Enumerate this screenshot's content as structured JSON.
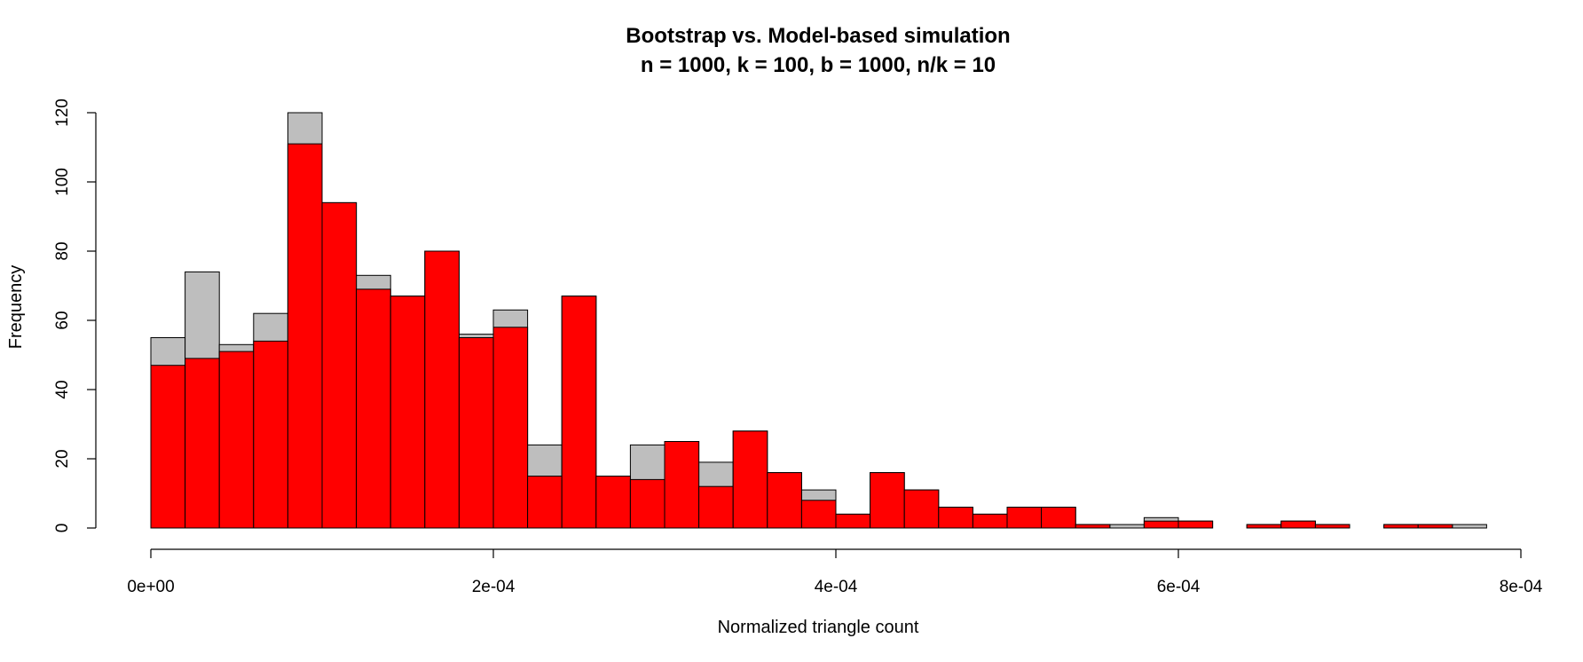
{
  "chart_data": {
    "type": "bar",
    "title": "Bootstrap vs. Model-based simulation",
    "subtitle": "n = 1000, k = 100, b = 1000, n/k = 10",
    "xlabel": "Normalized triangle count",
    "ylabel": "Frequency",
    "xlim": [
      0,
      0.0008
    ],
    "ylim": [
      0,
      120
    ],
    "x_ticks": [
      0,
      0.0002,
      0.0004,
      0.0006,
      0.0008
    ],
    "x_tick_labels": [
      "0e+00",
      "2e-04",
      "4e-04",
      "6e-04",
      "8e-04"
    ],
    "y_ticks": [
      0,
      20,
      40,
      60,
      80,
      100,
      120
    ],
    "y_tick_labels": [
      "0",
      "20",
      "40",
      "60",
      "80",
      "100",
      "120"
    ],
    "bin_width": 2e-05,
    "bin_starts": [
      0,
      2e-05,
      4e-05,
      6e-05,
      8e-05,
      0.0001,
      0.00012,
      0.00014,
      0.00016,
      0.00018,
      0.0002,
      0.00022,
      0.00024,
      0.00026,
      0.00028,
      0.0003,
      0.00032,
      0.00034,
      0.00036,
      0.00038,
      0.0004,
      0.00042,
      0.00044,
      0.00046,
      0.00048,
      0.0005,
      0.00052,
      0.00054,
      0.00056,
      0.00058,
      0.0006,
      0.00062,
      0.00064,
      0.00066,
      0.00068,
      0.0007,
      0.00072,
      0.00074,
      0.00076,
      0.00078
    ],
    "series": [
      {
        "color": "#bebebe",
        "values": [
          55,
          74,
          53,
          62,
          120,
          94,
          73,
          67,
          80,
          56,
          63,
          24,
          67,
          15,
          24,
          25,
          19,
          28,
          16,
          11,
          4,
          16,
          11,
          6,
          4,
          6,
          6,
          1,
          1,
          3,
          2,
          0,
          1,
          2,
          1,
          0,
          1,
          1,
          1,
          0
        ]
      },
      {
        "color": "#ff0000",
        "values": [
          47,
          49,
          51,
          54,
          111,
          94,
          69,
          67,
          80,
          55,
          58,
          15,
          67,
          15,
          14,
          25,
          12,
          28,
          16,
          8,
          4,
          16,
          11,
          6,
          4,
          6,
          6,
          1,
          0,
          2,
          2,
          0,
          1,
          2,
          1,
          0,
          1,
          1,
          0,
          0
        ]
      }
    ],
    "grid": false,
    "legend": "none"
  }
}
